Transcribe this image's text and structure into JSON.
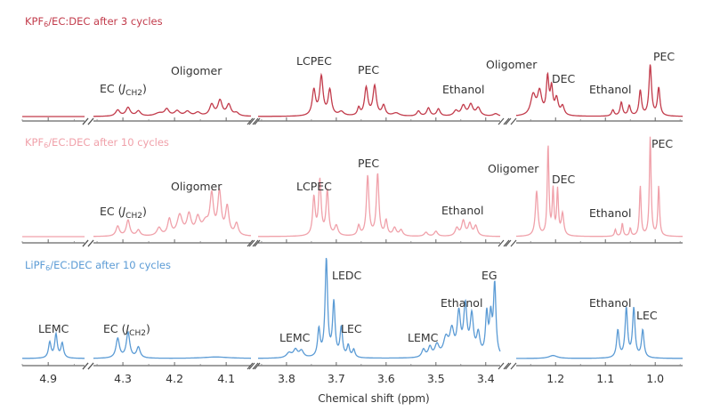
{
  "chart_data": [
    {
      "type": "line",
      "title_parts": [
        "KPF",
        "6",
        "/EC:DEC after 3 cycles"
      ],
      "color": "#c23b4b",
      "peaks": [
        [
          4.31,
          0.12,
          0.005
        ],
        [
          4.29,
          0.17,
          0.005
        ],
        [
          4.27,
          0.1,
          0.005
        ],
        [
          4.23,
          0.06,
          0.01
        ],
        [
          4.215,
          0.13,
          0.005
        ],
        [
          4.195,
          0.1,
          0.006
        ],
        [
          4.175,
          0.09,
          0.006
        ],
        [
          4.155,
          0.07,
          0.006
        ],
        [
          4.128,
          0.22,
          0.005
        ],
        [
          4.112,
          0.3,
          0.005
        ],
        [
          4.095,
          0.22,
          0.005
        ],
        [
          4.08,
          0.06,
          0.005
        ],
        [
          3.745,
          0.5,
          0.004
        ],
        [
          3.73,
          0.76,
          0.004
        ],
        [
          3.713,
          0.5,
          0.004
        ],
        [
          3.69,
          0.08,
          0.006
        ],
        [
          3.655,
          0.15,
          0.003
        ],
        [
          3.64,
          0.55,
          0.004
        ],
        [
          3.623,
          0.58,
          0.004
        ],
        [
          3.605,
          0.2,
          0.004
        ],
        [
          3.58,
          0.06,
          0.008
        ],
        [
          3.535,
          0.1,
          0.004
        ],
        [
          3.515,
          0.16,
          0.004
        ],
        [
          3.495,
          0.14,
          0.004
        ],
        [
          3.46,
          0.1,
          0.005
        ],
        [
          3.445,
          0.2,
          0.005
        ],
        [
          3.43,
          0.22,
          0.005
        ],
        [
          3.415,
          0.16,
          0.005
        ],
        [
          3.38,
          0.05,
          0.006
        ],
        [
          1.245,
          0.4,
          0.006
        ],
        [
          1.232,
          0.45,
          0.005
        ],
        [
          1.216,
          0.72,
          0.003
        ],
        [
          1.208,
          0.5,
          0.003
        ],
        [
          1.198,
          0.32,
          0.004
        ],
        [
          1.186,
          0.18,
          0.004
        ],
        [
          1.085,
          0.12,
          0.003
        ],
        [
          1.068,
          0.27,
          0.003
        ],
        [
          1.052,
          0.2,
          0.003
        ],
        [
          1.03,
          0.5,
          0.003
        ],
        [
          1.01,
          1.0,
          0.003
        ],
        [
          0.993,
          0.55,
          0.003
        ]
      ],
      "annotations": [
        {
          "parts": [
            "EC (",
            "J",
            "CH2",
            ")"
          ]
        },
        {
          "text": "Oligomer"
        },
        {
          "text": "LCPEC"
        },
        {
          "text": "PEC"
        },
        {
          "text": "Ethanol"
        },
        {
          "text": "Oligomer"
        },
        {
          "text": "DEC"
        },
        {
          "text": "Ethanol"
        },
        {
          "text": "PEC"
        }
      ]
    },
    {
      "type": "line",
      "title_parts": [
        "KPF",
        "6",
        "/EC:DEC after 10 cycles"
      ],
      "color": "#f0a1aa",
      "peaks": [
        [
          4.31,
          0.1,
          0.004
        ],
        [
          4.29,
          0.16,
          0.004
        ],
        [
          4.27,
          0.06,
          0.004
        ],
        [
          4.23,
          0.08,
          0.005
        ],
        [
          4.21,
          0.16,
          0.004
        ],
        [
          4.19,
          0.2,
          0.006
        ],
        [
          4.172,
          0.2,
          0.005
        ],
        [
          4.155,
          0.16,
          0.005
        ],
        [
          4.14,
          0.12,
          0.008
        ],
        [
          4.128,
          0.38,
          0.004
        ],
        [
          4.113,
          0.42,
          0.004
        ],
        [
          4.098,
          0.28,
          0.004
        ],
        [
          4.08,
          0.12,
          0.004
        ],
        [
          3.745,
          0.38,
          0.003
        ],
        [
          3.733,
          0.55,
          0.003
        ],
        [
          3.718,
          0.45,
          0.003
        ],
        [
          3.7,
          0.1,
          0.004
        ],
        [
          3.655,
          0.1,
          0.003
        ],
        [
          3.637,
          0.6,
          0.003
        ],
        [
          3.617,
          0.62,
          0.003
        ],
        [
          3.6,
          0.15,
          0.003
        ],
        [
          3.583,
          0.08,
          0.004
        ],
        [
          3.57,
          0.06,
          0.004
        ],
        [
          3.52,
          0.04,
          0.004
        ],
        [
          3.5,
          0.05,
          0.004
        ],
        [
          3.458,
          0.08,
          0.004
        ],
        [
          3.445,
          0.15,
          0.004
        ],
        [
          3.432,
          0.12,
          0.004
        ],
        [
          3.42,
          0.1,
          0.004
        ],
        [
          1.238,
          0.45,
          0.003
        ],
        [
          1.215,
          0.9,
          0.002
        ],
        [
          1.205,
          0.45,
          0.002
        ],
        [
          1.196,
          0.45,
          0.002
        ],
        [
          1.186,
          0.22,
          0.003
        ],
        [
          1.08,
          0.07,
          0.002
        ],
        [
          1.066,
          0.13,
          0.002
        ],
        [
          1.05,
          0.08,
          0.002
        ],
        [
          1.03,
          0.5,
          0.002
        ],
        [
          1.01,
          1.0,
          0.002
        ],
        [
          0.993,
          0.5,
          0.002
        ]
      ],
      "annotations": [
        {
          "parts": [
            "EC (",
            "J",
            "CH2",
            ")"
          ]
        },
        {
          "text": "Oligomer"
        },
        {
          "text": "LCPEC"
        },
        {
          "text": "PEC"
        },
        {
          "text": "Ethanol"
        },
        {
          "text": "Oligomer"
        },
        {
          "text": "DEC"
        },
        {
          "text": "Ethanol"
        },
        {
          "text": "PEC"
        }
      ]
    },
    {
      "type": "line",
      "title_parts": [
        "LiPF",
        "6",
        "/EC:DEC after 10 cycles"
      ],
      "color": "#5b9bd5",
      "peaks": [
        [
          4.897,
          0.16,
          0.003
        ],
        [
          4.885,
          0.24,
          0.003
        ],
        [
          4.873,
          0.15,
          0.003
        ],
        [
          4.31,
          0.2,
          0.004
        ],
        [
          4.29,
          0.26,
          0.004
        ],
        [
          4.27,
          0.11,
          0.004
        ],
        [
          4.12,
          0.015,
          0.03
        ],
        [
          3.795,
          0.05,
          0.006
        ],
        [
          3.782,
          0.08,
          0.005
        ],
        [
          3.77,
          0.07,
          0.005
        ],
        [
          3.735,
          0.28,
          0.003
        ],
        [
          3.72,
          1.0,
          0.003
        ],
        [
          3.705,
          0.55,
          0.003
        ],
        [
          3.69,
          0.3,
          0.003
        ],
        [
          3.676,
          0.12,
          0.003
        ],
        [
          3.665,
          0.08,
          0.003
        ],
        [
          3.525,
          0.08,
          0.004
        ],
        [
          3.512,
          0.1,
          0.004
        ],
        [
          3.498,
          0.12,
          0.005
        ],
        [
          3.48,
          0.18,
          0.006
        ],
        [
          3.468,
          0.25,
          0.005
        ],
        [
          3.454,
          0.42,
          0.004
        ],
        [
          3.441,
          0.5,
          0.004
        ],
        [
          3.428,
          0.4,
          0.004
        ],
        [
          3.415,
          0.22,
          0.004
        ],
        [
          3.398,
          0.42,
          0.003
        ],
        [
          3.39,
          0.38,
          0.003
        ],
        [
          3.382,
          0.73,
          0.003
        ],
        [
          1.205,
          0.03,
          0.01
        ],
        [
          1.075,
          0.28,
          0.003
        ],
        [
          1.058,
          0.5,
          0.003
        ],
        [
          1.043,
          0.5,
          0.003
        ],
        [
          1.025,
          0.28,
          0.003
        ]
      ],
      "annotations": [
        {
          "text": "LEMC"
        },
        {
          "parts": [
            "EC (",
            "J",
            "CH2",
            ")"
          ]
        },
        {
          "text": "LEDC"
        },
        {
          "text": "LEC"
        },
        {
          "text": "LEMC"
        },
        {
          "text": "LEMC"
        },
        {
          "text": "Ethanol"
        },
        {
          "text": "EG"
        },
        {
          "text": "Ethanol"
        },
        {
          "text": "LEC"
        }
      ]
    }
  ],
  "x_axis": {
    "label": "Chemical shift (ppm)",
    "reversed": true,
    "segments": [
      [
        4.95,
        4.83
      ],
      [
        4.357,
        4.052
      ],
      [
        3.857,
        3.371
      ],
      [
        1.279,
        0.945
      ]
    ],
    "ticks": [
      "4.9",
      "4.3",
      "4.2",
      "4.1",
      "3.8",
      "3.7",
      "3.6",
      "3.5",
      "3.4",
      "1.2",
      "1.1",
      "1.0"
    ],
    "grid": false
  }
}
